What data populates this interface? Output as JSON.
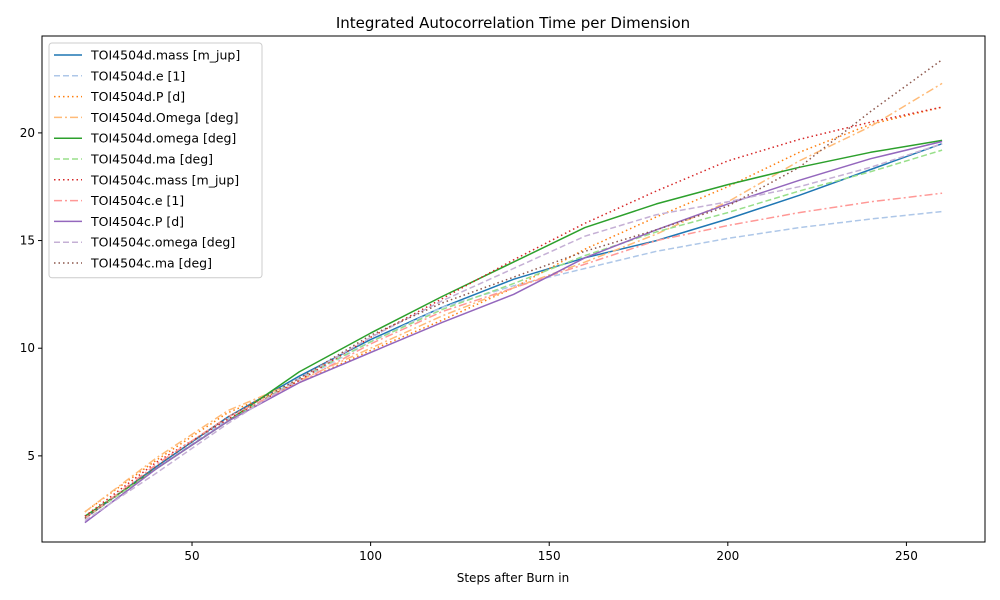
{
  "chart_data": {
    "type": "line",
    "title": "Integrated Autocorrelation Time per Dimension",
    "xlabel": "Steps after Burn in",
    "ylabel": "",
    "xlim": [
      8,
      272
    ],
    "ylim": [
      1.0,
      24.5
    ],
    "xticks": [
      50,
      100,
      150,
      200,
      250
    ],
    "yticks": [
      5,
      10,
      15,
      20
    ],
    "grid": false,
    "legend_position": "upper-left",
    "x": [
      20,
      40,
      60,
      80,
      100,
      120,
      140,
      160,
      180,
      200,
      220,
      240,
      260
    ],
    "series": [
      {
        "name": "TOI4504d.mass [m_jup]",
        "color": "#1f77b4",
        "dash": "solid",
        "values": [
          2.1,
          4.5,
          6.8,
          8.7,
          10.4,
          11.9,
          13.2,
          14.2,
          15.0,
          16.0,
          17.1,
          18.3,
          19.5
        ]
      },
      {
        "name": "TOI4504d.e [1]",
        "color": "#aec7e8",
        "dash": "dashed",
        "values": [
          2.2,
          4.4,
          6.7,
          8.5,
          10.3,
          11.9,
          12.9,
          13.7,
          14.5,
          15.1,
          15.6,
          16.0,
          16.35
        ]
      },
      {
        "name": "TOI4504d.P [d]",
        "color": "#ff7f0e",
        "dash": "dotted",
        "values": [
          2.4,
          4.8,
          7.0,
          8.4,
          9.9,
          11.3,
          12.8,
          14.6,
          16.1,
          17.5,
          19.1,
          20.4,
          21.2
        ]
      },
      {
        "name": "TOI4504d.Omega [deg]",
        "color": "#ffbb78",
        "dash": "dashdot",
        "values": [
          2.4,
          4.9,
          7.1,
          8.5,
          10.0,
          11.5,
          12.8,
          14.0,
          15.3,
          16.8,
          18.7,
          20.3,
          22.3
        ]
      },
      {
        "name": "TOI4504d.omega [deg]",
        "color": "#2ca02c",
        "dash": "solid",
        "values": [
          2.2,
          4.4,
          6.6,
          8.9,
          10.7,
          12.4,
          14.0,
          15.6,
          16.7,
          17.6,
          18.4,
          19.1,
          19.65
        ]
      },
      {
        "name": "TOI4504d.ma [deg]",
        "color": "#98df8a",
        "dash": "dashed",
        "values": [
          2.1,
          4.4,
          6.6,
          8.6,
          10.3,
          11.8,
          13.0,
          14.3,
          15.4,
          16.3,
          17.3,
          18.2,
          19.2
        ]
      },
      {
        "name": "TOI4504c.mass [m_jup]",
        "color": "#d62728",
        "dash": "dotted",
        "values": [
          2.2,
          4.7,
          6.7,
          8.5,
          10.5,
          12.3,
          14.1,
          15.8,
          17.3,
          18.7,
          19.7,
          20.5,
          21.2
        ]
      },
      {
        "name": "TOI4504c.e [1]",
        "color": "#ff9896",
        "dash": "dashdot",
        "values": [
          2.1,
          4.6,
          6.8,
          8.4,
          10.2,
          11.7,
          12.8,
          13.9,
          15.0,
          15.7,
          16.3,
          16.8,
          17.2
        ]
      },
      {
        "name": "TOI4504c.P [d]",
        "color": "#9467bd",
        "dash": "solid",
        "values": [
          1.9,
          4.4,
          6.6,
          8.4,
          9.8,
          11.2,
          12.5,
          14.2,
          15.5,
          16.7,
          17.8,
          18.8,
          19.6
        ]
      },
      {
        "name": "TOI4504c.omega [deg]",
        "color": "#c5b0d5",
        "dash": "dashed",
        "values": [
          2.0,
          4.2,
          6.5,
          8.6,
          10.5,
          12.2,
          13.7,
          15.2,
          16.2,
          16.8,
          17.5,
          18.4,
          19.5
        ]
      },
      {
        "name": "TOI4504c.ma [deg]",
        "color": "#8c564b",
        "dash": "dotted",
        "values": [
          2.1,
          4.5,
          6.8,
          8.6,
          10.6,
          12.1,
          13.3,
          14.5,
          15.5,
          16.6,
          18.4,
          21.0,
          23.4
        ]
      }
    ]
  }
}
